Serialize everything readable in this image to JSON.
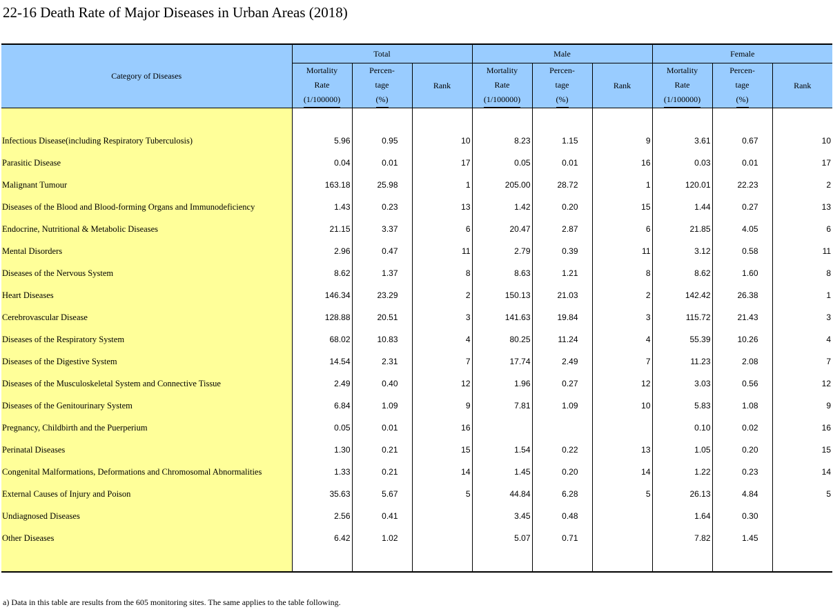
{
  "title": "22-16  Death Rate of Major Diseases in Urban Areas (2018)",
  "header": {
    "category": "Category of  Diseases",
    "groups": [
      "Total",
      "Male",
      "Female"
    ],
    "mortality": [
      "Mortality",
      "Rate",
      "(1/100000)"
    ],
    "percentage": [
      "Percen-",
      "tage",
      "(%)"
    ],
    "rank": "Rank"
  },
  "rows": [
    {
      "name": "Infectious Disease(including Respiratory Tuberculosis)",
      "t": [
        "5.96",
        "0.95",
        "10"
      ],
      "m": [
        "8.23",
        "1.15",
        "9"
      ],
      "f": [
        "3.61",
        "0.67",
        "10"
      ]
    },
    {
      "name": "Parasitic Disease",
      "t": [
        "0.04",
        "0.01",
        "17"
      ],
      "m": [
        "0.05",
        "0.01",
        "16"
      ],
      "f": [
        "0.03",
        "0.01",
        "17"
      ]
    },
    {
      "name": "Malignant Tumour",
      "t": [
        "163.18",
        "25.98",
        "1"
      ],
      "m": [
        "205.00",
        "28.72",
        "1"
      ],
      "f": [
        "120.01",
        "22.23",
        "2"
      ]
    },
    {
      "name": "Diseases of the Blood and  Blood-forming Organs  and Immunodeficiency",
      "t": [
        "1.43",
        "0.23",
        "13"
      ],
      "m": [
        "1.42",
        "0.20",
        "15"
      ],
      "f": [
        "1.44",
        "0.27",
        "13"
      ]
    },
    {
      "name": "Endocrine, Nutritional &  Metabolic Diseases",
      "t": [
        "21.15",
        "3.37",
        "6"
      ],
      "m": [
        "20.47",
        "2.87",
        "6"
      ],
      "f": [
        "21.85",
        "4.05",
        "6"
      ]
    },
    {
      "name": "Mental Disorders",
      "t": [
        "2.96",
        "0.47",
        "11"
      ],
      "m": [
        "2.79",
        "0.39",
        "11"
      ],
      "f": [
        "3.12",
        "0.58",
        "11"
      ]
    },
    {
      "name": "Diseases of the Nervous System",
      "t": [
        "8.62",
        "1.37",
        "8"
      ],
      "m": [
        "8.63",
        "1.21",
        "8"
      ],
      "f": [
        "8.62",
        "1.60",
        "8"
      ]
    },
    {
      "name": "Heart Diseases",
      "t": [
        "146.34",
        "23.29",
        "2"
      ],
      "m": [
        "150.13",
        "21.03",
        "2"
      ],
      "f": [
        "142.42",
        "26.38",
        "1"
      ]
    },
    {
      "name": "Cerebrovascular Disease",
      "t": [
        "128.88",
        "20.51",
        "3"
      ],
      "m": [
        "141.63",
        "19.84",
        "3"
      ],
      "f": [
        "115.72",
        "21.43",
        "3"
      ]
    },
    {
      "name": "Diseases of the Respiratory  System",
      "t": [
        "68.02",
        "10.83",
        "4"
      ],
      "m": [
        "80.25",
        "11.24",
        "4"
      ],
      "f": [
        "55.39",
        "10.26",
        "4"
      ]
    },
    {
      "name": "Diseases of the Digestive System",
      "t": [
        "14.54",
        "2.31",
        "7"
      ],
      "m": [
        "17.74",
        "2.49",
        "7"
      ],
      "f": [
        "11.23",
        "2.08",
        "7"
      ]
    },
    {
      "name": "Diseases of the Musculoskeletal  System and Connective Tissue",
      "t": [
        "2.49",
        "0.40",
        "12"
      ],
      "m": [
        "1.96",
        "0.27",
        "12"
      ],
      "f": [
        "3.03",
        "0.56",
        "12"
      ]
    },
    {
      "name": "Diseases of the Genitourinary System",
      "t": [
        "6.84",
        "1.09",
        "9"
      ],
      "m": [
        "7.81",
        "1.09",
        "10"
      ],
      "f": [
        "5.83",
        "1.08",
        "9"
      ]
    },
    {
      "name": "Pregnancy, Childbirth and  the Puerperium",
      "t": [
        "0.05",
        "0.01",
        "16"
      ],
      "m": [
        "",
        "",
        ""
      ],
      "f": [
        "0.10",
        "0.02",
        "16"
      ]
    },
    {
      "name": "Perinatal Diseases",
      "t": [
        "1.30",
        "0.21",
        "15"
      ],
      "m": [
        "1.54",
        "0.22",
        "13"
      ],
      "f": [
        "1.05",
        "0.20",
        "15"
      ]
    },
    {
      "name": "Congenital Malformations,  Deformations and  Chromosomal Abnormalities",
      "t": [
        "1.33",
        "0.21",
        "14"
      ],
      "m": [
        "1.45",
        "0.20",
        "14"
      ],
      "f": [
        "1.22",
        "0.23",
        "14"
      ]
    },
    {
      "name": "External Causes of  Injury and Poison",
      "t": [
        "35.63",
        "5.67",
        "5"
      ],
      "m": [
        "44.84",
        "6.28",
        "5"
      ],
      "f": [
        "26.13",
        "4.84",
        "5"
      ]
    },
    {
      "name": "Undiagnosed Diseases",
      "t": [
        "2.56",
        "0.41",
        ""
      ],
      "m": [
        "3.45",
        "0.48",
        ""
      ],
      "f": [
        "1.64",
        "0.30",
        ""
      ]
    },
    {
      "name": "Other Diseases",
      "t": [
        "6.42",
        "1.02",
        ""
      ],
      "m": [
        "5.07",
        "0.71",
        ""
      ],
      "f": [
        "7.82",
        "1.45",
        ""
      ]
    }
  ],
  "footnote": "a) Data in this table are results from the 605 monitoring sites. The same applies to the table following."
}
